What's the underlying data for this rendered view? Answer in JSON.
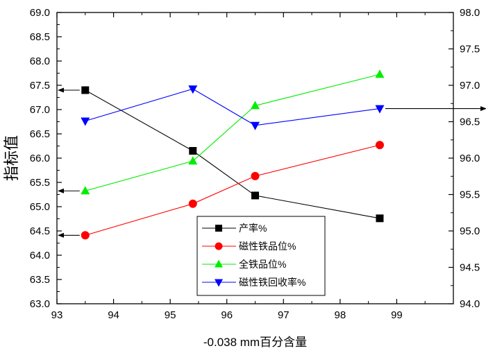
{
  "chart_data": {
    "type": "line",
    "xlabel": "-0.038 mm百分含量",
    "ylabel_left": "指标值",
    "ylabel_right": "",
    "xlim": [
      93,
      100
    ],
    "ylim_left": [
      63.0,
      69.0
    ],
    "ylim_right": [
      94.0,
      98.0
    ],
    "x_ticks": [
      "93",
      "94",
      "95",
      "96",
      "97",
      "98",
      "99"
    ],
    "y_ticks_left": [
      "63.0",
      "63.5",
      "64.0",
      "64.5",
      "65.0",
      "65.5",
      "66.0",
      "66.5",
      "67.0",
      "67.5",
      "68.0",
      "68.5",
      "69.0"
    ],
    "y_ticks_right": [
      "94.0",
      "94.5",
      "95.0",
      "95.5",
      "96.0",
      "96.5",
      "97.0",
      "97.5",
      "98.0"
    ],
    "grid": false,
    "legend_position": "bottom-center",
    "series": [
      {
        "name": "产率%",
        "axis": "left",
        "color": "#000000",
        "marker": "square",
        "arrow": "left",
        "x": [
          93.5,
          95.4,
          96.5,
          98.7
        ],
        "y": [
          67.4,
          66.15,
          65.23,
          64.76
        ]
      },
      {
        "name": "磁性铁品位%",
        "axis": "left",
        "color": "#ff0000",
        "marker": "circle",
        "arrow": "left",
        "x": [
          93.5,
          95.4,
          96.5,
          98.7
        ],
        "y": [
          64.41,
          65.06,
          65.63,
          66.27
        ]
      },
      {
        "name": "全铁品位%",
        "axis": "right",
        "color": "#00ee00",
        "marker": "triangle-up",
        "arrow": "left",
        "x": [
          93.5,
          95.4,
          96.5,
          98.7
        ],
        "y": [
          95.55,
          95.96,
          96.72,
          97.15
        ]
      },
      {
        "name": "磁性铁回收率%",
        "axis": "right",
        "color": "#0000ff",
        "marker": "triangle-down",
        "arrow": "right",
        "x": [
          93.5,
          95.4,
          96.5,
          98.7
        ],
        "y": [
          96.51,
          96.95,
          96.45,
          96.68
        ]
      }
    ]
  }
}
